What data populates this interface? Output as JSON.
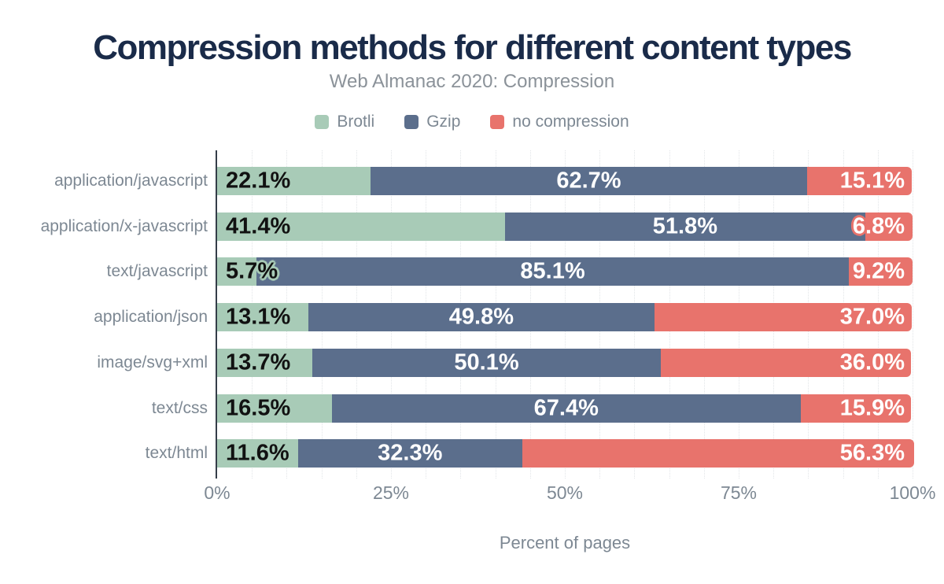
{
  "chart_data": {
    "type": "bar",
    "stacked": true,
    "orientation": "horizontal",
    "title": "Compression methods for different content types",
    "subtitle": "Web Almanac 2020: Compression",
    "xlabel": "Percent of pages",
    "x_ticks": [
      "0%",
      "25%",
      "50%",
      "75%",
      "100%"
    ],
    "xlim": [
      0,
      100
    ],
    "grid": "vertical dotted lines every 5%",
    "legend_position": "top",
    "categories": [
      "application/javascript",
      "application/x-javascript",
      "text/javascript",
      "application/json",
      "image/svg+xml",
      "text/css",
      "text/html"
    ],
    "series": [
      {
        "name": "Brotli",
        "color": "#a8cbb7",
        "text_color": "#111111",
        "values": [
          22.1,
          41.4,
          5.7,
          13.1,
          13.7,
          16.5,
          11.6
        ]
      },
      {
        "name": "Gzip",
        "color": "#5b6e8c",
        "text_color": "#ffffff",
        "values": [
          62.7,
          51.8,
          85.1,
          49.8,
          50.1,
          67.4,
          32.3
        ]
      },
      {
        "name": "no compression",
        "color": "#e8736c",
        "text_color": "#ffffff",
        "values": [
          15.1,
          6.8,
          9.2,
          37.0,
          36.0,
          15.9,
          56.3
        ]
      }
    ],
    "value_suffix": "%",
    "value_decimals": 1
  },
  "colors": {
    "title": "#1a2b49",
    "subtitle": "#8b9299",
    "axis_text": "#7d8893",
    "axis_line": "#343d49",
    "gridline": "#e2e5e8",
    "background": "#ffffff"
  }
}
